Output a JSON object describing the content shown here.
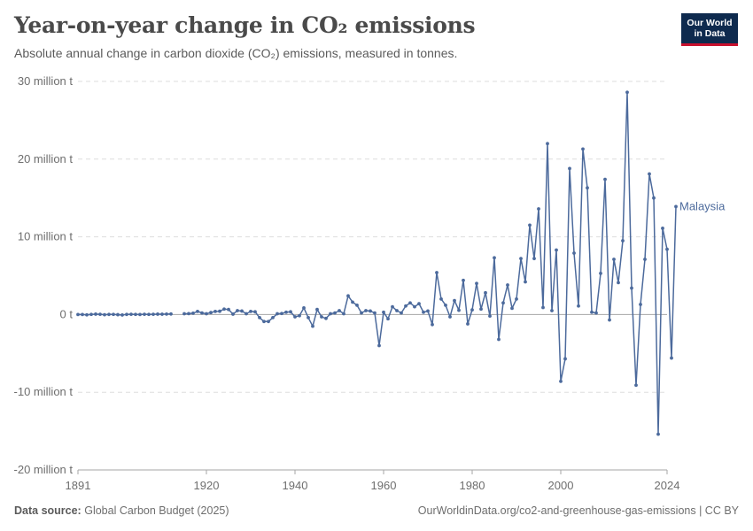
{
  "header": {
    "title": "Year-on-year change in CO₂ emissions",
    "subtitle": "Absolute annual change in carbon dioxide (CO₂) emissions, measured in tonnes."
  },
  "logo": {
    "line1": "Our World",
    "line2": "in Data"
  },
  "footer": {
    "source_label": "Data source:",
    "source_value": "Global Carbon Budget (2025)",
    "url": "OurWorldinData.org/co2-and-greenhouse-gas-emissions | CC BY"
  },
  "chart_data": {
    "type": "line",
    "title": "Year-on-year change in CO₂ emissions",
    "ylabel": "tonnes",
    "xlim": [
      1891,
      2024
    ],
    "ylim": [
      -20000000,
      30000000
    ],
    "yticks": [
      {
        "value": 30000000,
        "label": "30 million t"
      },
      {
        "value": 20000000,
        "label": "20 million t"
      },
      {
        "value": 10000000,
        "label": "10 million t"
      },
      {
        "value": 0,
        "label": "0 t"
      },
      {
        "value": -10000000,
        "label": "-10 million t"
      },
      {
        "value": -20000000,
        "label": "-20 million t"
      }
    ],
    "xticks": [
      {
        "value": 1891,
        "label": "1891"
      },
      {
        "value": 1920,
        "label": "1920"
      },
      {
        "value": 1940,
        "label": "1940"
      },
      {
        "value": 1960,
        "label": "1960"
      },
      {
        "value": 1980,
        "label": "1980"
      },
      {
        "value": 2000,
        "label": "2000"
      },
      {
        "value": 2024,
        "label": "2024"
      }
    ],
    "grid": true,
    "colors": {
      "series": "#4c6a9c",
      "grid": "#dddddd",
      "zero": "#a6a6a6",
      "text": "#6e6e6e"
    },
    "series": [
      {
        "name": "Malaysia",
        "points": [
          [
            1891,
            0
          ],
          [
            1892,
            0
          ],
          [
            1893,
            -40000
          ],
          [
            1894,
            20000
          ],
          [
            1895,
            50000
          ],
          [
            1896,
            30000
          ],
          [
            1897,
            -30000
          ],
          [
            1898,
            10000
          ],
          [
            1899,
            20000
          ],
          [
            1900,
            -20000
          ],
          [
            1901,
            -60000
          ],
          [
            1902,
            10000
          ],
          [
            1903,
            30000
          ],
          [
            1904,
            20000
          ],
          [
            1905,
            0
          ],
          [
            1906,
            30000
          ],
          [
            1907,
            20000
          ],
          [
            1908,
            30000
          ],
          [
            1909,
            50000
          ],
          [
            1910,
            40000
          ],
          [
            1911,
            60000
          ],
          [
            1912,
            70000
          ],
          [
            1915,
            100000
          ],
          [
            1916,
            120000
          ],
          [
            1917,
            170000
          ],
          [
            1918,
            400000
          ],
          [
            1919,
            200000
          ],
          [
            1920,
            100000
          ],
          [
            1921,
            250000
          ],
          [
            1922,
            400000
          ],
          [
            1923,
            420000
          ],
          [
            1924,
            700000
          ],
          [
            1925,
            650000
          ],
          [
            1926,
            50000
          ],
          [
            1927,
            500000
          ],
          [
            1928,
            450000
          ],
          [
            1929,
            100000
          ],
          [
            1930,
            400000
          ],
          [
            1931,
            350000
          ],
          [
            1932,
            -400000
          ],
          [
            1933,
            -900000
          ],
          [
            1934,
            -900000
          ],
          [
            1935,
            -400000
          ],
          [
            1936,
            100000
          ],
          [
            1937,
            130000
          ],
          [
            1938,
            300000
          ],
          [
            1939,
            350000
          ],
          [
            1940,
            -300000
          ],
          [
            1941,
            -150000
          ],
          [
            1942,
            850000
          ],
          [
            1943,
            -400000
          ],
          [
            1944,
            -1500000
          ],
          [
            1945,
            650000
          ],
          [
            1946,
            -300000
          ],
          [
            1947,
            -500000
          ],
          [
            1948,
            100000
          ],
          [
            1949,
            200000
          ],
          [
            1950,
            500000
          ],
          [
            1951,
            100000
          ],
          [
            1952,
            2400000
          ],
          [
            1953,
            1600000
          ],
          [
            1954,
            1200000
          ],
          [
            1955,
            200000
          ],
          [
            1956,
            500000
          ],
          [
            1957,
            450000
          ],
          [
            1958,
            200000
          ],
          [
            1959,
            -4000000
          ],
          [
            1960,
            300000
          ],
          [
            1961,
            -550000
          ],
          [
            1962,
            1000000
          ],
          [
            1963,
            500000
          ],
          [
            1964,
            200000
          ],
          [
            1965,
            1100000
          ],
          [
            1966,
            1500000
          ],
          [
            1967,
            1000000
          ],
          [
            1968,
            1400000
          ],
          [
            1969,
            300000
          ],
          [
            1970,
            450000
          ],
          [
            1971,
            -1300000
          ],
          [
            1972,
            5400000
          ],
          [
            1973,
            2000000
          ],
          [
            1974,
            1200000
          ],
          [
            1975,
            -300000
          ],
          [
            1976,
            1800000
          ],
          [
            1977,
            550000
          ],
          [
            1978,
            4400000
          ],
          [
            1979,
            -1200000
          ],
          [
            1980,
            600000
          ],
          [
            1981,
            4000000
          ],
          [
            1982,
            700000
          ],
          [
            1983,
            2800000
          ],
          [
            1984,
            -200000
          ],
          [
            1985,
            7300000
          ],
          [
            1986,
            -3200000
          ],
          [
            1987,
            1500000
          ],
          [
            1988,
            3800000
          ],
          [
            1989,
            800000
          ],
          [
            1990,
            2000000
          ],
          [
            1991,
            7200000
          ],
          [
            1992,
            4200000
          ],
          [
            1993,
            11500000
          ],
          [
            1994,
            7200000
          ],
          [
            1995,
            13600000
          ],
          [
            1996,
            900000
          ],
          [
            1997,
            22000000
          ],
          [
            1998,
            500000
          ],
          [
            1999,
            8300000
          ],
          [
            2000,
            -8600000
          ],
          [
            2001,
            -5700000
          ],
          [
            2002,
            18800000
          ],
          [
            2003,
            7900000
          ],
          [
            2004,
            1100000
          ],
          [
            2005,
            21300000
          ],
          [
            2006,
            16300000
          ],
          [
            2007,
            300000
          ],
          [
            2008,
            200000
          ],
          [
            2009,
            5300000
          ],
          [
            2010,
            17400000
          ],
          [
            2011,
            -700000
          ],
          [
            2012,
            7100000
          ],
          [
            2013,
            4100000
          ],
          [
            2014,
            9500000
          ],
          [
            2015,
            28600000
          ],
          [
            2016,
            3400000
          ],
          [
            2017,
            -9100000
          ],
          [
            2018,
            1300000
          ],
          [
            2019,
            7100000
          ],
          [
            2020,
            18100000
          ],
          [
            2021,
            15000000
          ],
          [
            2022,
            -15400000
          ],
          [
            2023,
            11100000
          ],
          [
            2024,
            8400000
          ],
          [
            2025,
            -5600000
          ],
          [
            2026,
            13900000
          ]
        ]
      }
    ]
  }
}
